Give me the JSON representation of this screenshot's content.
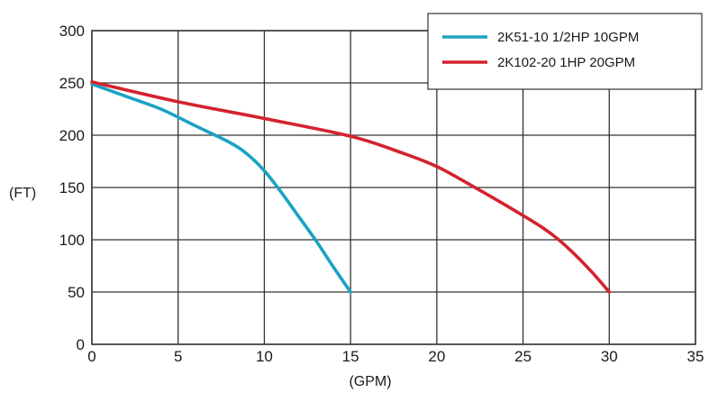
{
  "chart_data": {
    "type": "line",
    "title": "",
    "xlabel": "(GPM)",
    "ylabel": "(FT)",
    "xlim": [
      0,
      35
    ],
    "ylim": [
      0,
      300
    ],
    "x_ticks": [
      0,
      5,
      10,
      15,
      20,
      25,
      30,
      35
    ],
    "y_ticks": [
      0,
      50,
      100,
      150,
      200,
      250,
      300
    ],
    "grid": true,
    "legend_position": "top-right",
    "series": [
      {
        "name": "2K51-10 1/2HP 10GPM",
        "color": "#1aa3c2",
        "points": [
          [
            0,
            249
          ],
          [
            2,
            237
          ],
          [
            4,
            225
          ],
          [
            6,
            209
          ],
          [
            8,
            193
          ],
          [
            9,
            182
          ],
          [
            10,
            166
          ],
          [
            11,
            145
          ],
          [
            12,
            122
          ],
          [
            13,
            99
          ],
          [
            14,
            74
          ],
          [
            15,
            50
          ]
        ]
      },
      {
        "name": "2K102-20 1HP 20GPM",
        "color": "#d3232e",
        "points": [
          [
            0,
            251
          ],
          [
            5,
            232
          ],
          [
            10,
            216
          ],
          [
            15,
            199
          ],
          [
            18,
            183
          ],
          [
            20,
            170
          ],
          [
            22,
            152
          ],
          [
            24,
            133
          ],
          [
            26,
            113
          ],
          [
            27,
            101
          ],
          [
            28,
            86
          ],
          [
            29,
            69
          ],
          [
            30,
            50
          ]
        ]
      }
    ]
  }
}
